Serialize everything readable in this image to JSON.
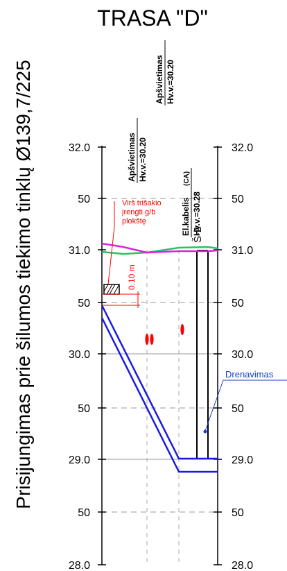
{
  "title": "TRASA \"D\"",
  "side_title": "Prisijungimas prie šilumos tiekimo tinklų Ø139,7/225",
  "levels": {
    "left": [
      "32.0",
      "50",
      "31.0",
      "50",
      "30.0",
      "50",
      "29.0",
      "50",
      "28.0"
    ],
    "right": [
      "32.0",
      "50",
      "31.0",
      "50",
      "30.0",
      "50",
      "29.0",
      "50",
      "28.0"
    ]
  },
  "crossings": [
    {
      "name": "Apšvietimas",
      "level": "Hv.v.=30.20"
    },
    {
      "name": "Apšvietimas",
      "level": "Hv.v.=30.20"
    },
    {
      "name": "El.kabelis",
      "tag": "(CA)",
      "level": "Hv.v.=30.28"
    }
  ],
  "well_label": "Š-2",
  "note_lines": [
    "Virš trišakio",
    "įrengti g/b",
    "plokštę"
  ],
  "dimension": "0.10 m",
  "drainage_label": "Drenavimas",
  "colors": {
    "pipe": "#1a1adf",
    "surface": "#e020e0",
    "ground": "#2cc060",
    "marker": "#ff0000",
    "note": "#ff0000",
    "drainage": "#1a3cc8"
  }
}
